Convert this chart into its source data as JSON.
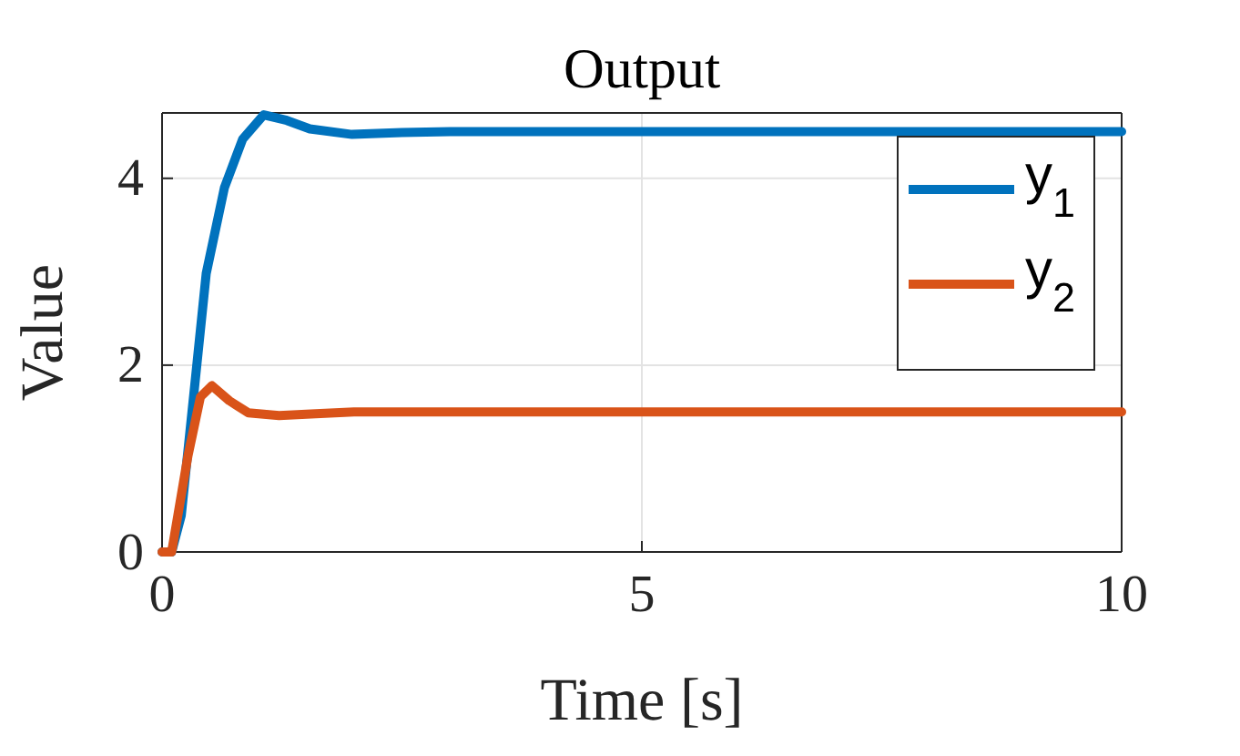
{
  "chart_data": {
    "type": "line",
    "title": "Output",
    "xlabel": "Time [s]",
    "ylabel": "Value",
    "xlim": [
      0,
      10
    ],
    "ylim": [
      0,
      4.7
    ],
    "xticks": [
      0,
      5,
      10
    ],
    "yticks": [
      0,
      2,
      4
    ],
    "grid": true,
    "legend": "top right",
    "marker": "none",
    "line_style": "solid",
    "series": [
      {
        "name": "y$_{1}$",
        "color": "#0072bd",
        "x": [
          0,
          0.1,
          0.2,
          0.33,
          0.46,
          0.65,
          0.84,
          1.06,
          1.3,
          1.54,
          1.98,
          2.5,
          3,
          5,
          7.5,
          10
        ],
        "values": [
          0,
          0,
          0.39,
          1.68,
          2.98,
          3.9,
          4.42,
          4.68,
          4.62,
          4.53,
          4.47,
          4.49,
          4.5,
          4.5,
          4.5,
          4.5
        ]
      },
      {
        "name": "y$_{2}$",
        "color": "#d95319",
        "x": [
          0,
          0.1,
          0.27,
          0.4,
          0.52,
          0.7,
          0.9,
          1.22,
          1.6,
          2,
          3,
          5,
          7.5,
          10
        ],
        "values": [
          0,
          0,
          1.03,
          1.66,
          1.78,
          1.62,
          1.49,
          1.46,
          1.48,
          1.5,
          1.5,
          1.5,
          1.5,
          1.5
        ]
      }
    ]
  }
}
